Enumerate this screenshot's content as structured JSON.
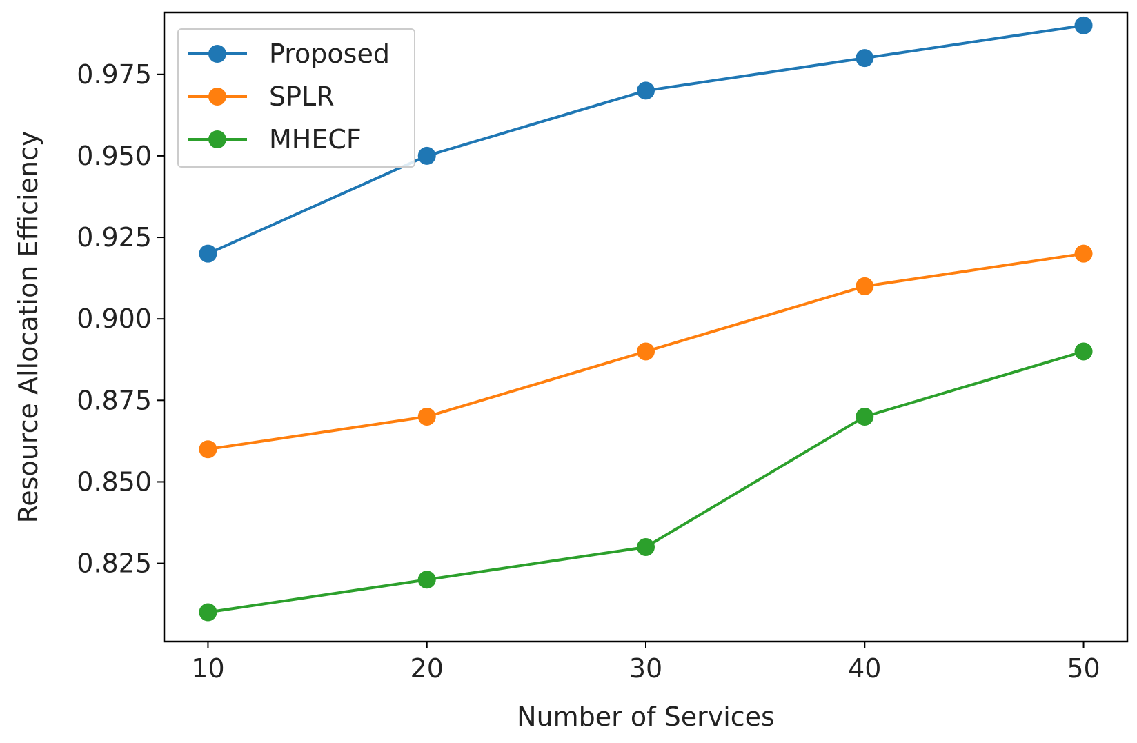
{
  "chart_data": {
    "type": "line",
    "title": "",
    "xlabel": "Number of Services",
    "ylabel": "Resource Allocation Efficiency",
    "x": [
      10,
      20,
      30,
      40,
      50
    ],
    "xticks": [
      "10",
      "20",
      "30",
      "40",
      "50"
    ],
    "xlim": [
      8,
      52
    ],
    "yticks": [
      "0.825",
      "0.850",
      "0.875",
      "0.900",
      "0.925",
      "0.950",
      "0.975"
    ],
    "ytick_values": [
      0.825,
      0.85,
      0.875,
      0.9,
      0.925,
      0.95,
      0.975
    ],
    "ylim": [
      0.801,
      0.994
    ],
    "grid": false,
    "legend_position": "top-left",
    "series": [
      {
        "name": "Proposed",
        "color": "#1f77b4",
        "values": [
          0.92,
          0.95,
          0.97,
          0.98,
          0.99
        ]
      },
      {
        "name": "SPLR",
        "color": "#ff7f0e",
        "values": [
          0.86,
          0.87,
          0.89,
          0.91,
          0.92
        ]
      },
      {
        "name": "MHECF",
        "color": "#2ca02c",
        "values": [
          0.81,
          0.82,
          0.83,
          0.87,
          0.89
        ]
      }
    ]
  }
}
